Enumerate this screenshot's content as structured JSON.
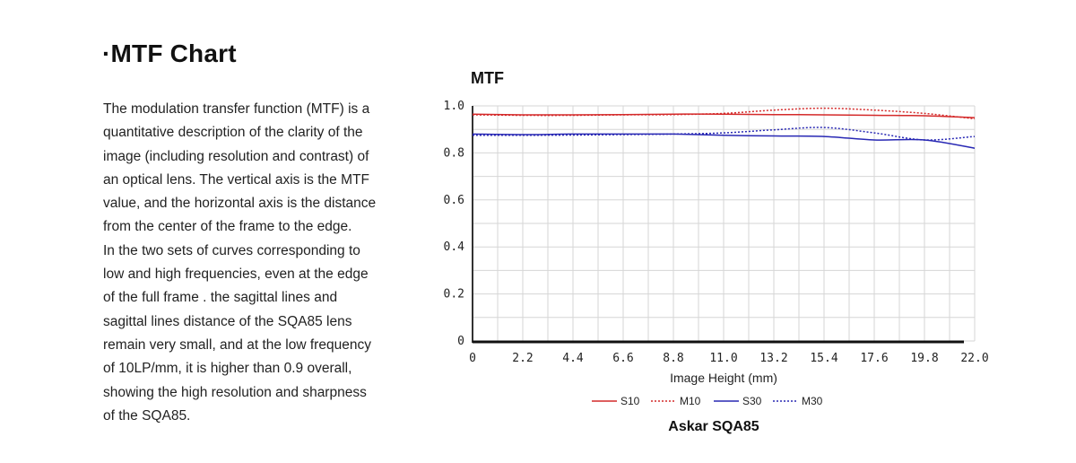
{
  "section": {
    "title": "·MTF Chart",
    "paragraph_lines": [
      "The modulation transfer function (MTF) is a",
      "quantitative description of the clarity of the",
      "image (including resolution and contrast) of",
      "an optical lens. The vertical axis is the MTF",
      "value, and the horizontal axis is the distance",
      "from the center of the frame to the edge.",
      "In the two sets of curves corresponding to",
      "low and high frequencies, even at the edge",
      "of the full frame . the sagittal lines and",
      "sagittal lines distance of the SQA85 lens",
      "remain very small, and at the low frequency",
      "of 10LP/mm, it is higher than 0.9 overall,",
      "showing the high resolution and sharpness",
      "of the SQA85."
    ]
  },
  "chart_data": {
    "type": "line",
    "title": "MTF",
    "xlabel": "Image Height (mm)",
    "ylabel": "",
    "caption": "Askar SQA85",
    "xlim": [
      0,
      22
    ],
    "ylim": [
      0,
      1.0
    ],
    "x_ticks": [
      "0",
      "2.2",
      "4.4",
      "6.6",
      "8.8",
      "11.0",
      "13.2",
      "15.4",
      "17.6",
      "19.8",
      "22.0"
    ],
    "y_ticks": [
      "0",
      "0.2",
      "0.4",
      "0.6",
      "0.8",
      "1.0"
    ],
    "grid": true,
    "legend_position": "bottom",
    "series": [
      {
        "name": "S10",
        "color": "#d42a2a",
        "style": "solid",
        "x": [
          0,
          2.2,
          4.4,
          6.6,
          8.8,
          11.0,
          13.2,
          15.4,
          17.6,
          19.8,
          22.0
        ],
        "y": [
          0.965,
          0.962,
          0.962,
          0.963,
          0.965,
          0.965,
          0.963,
          0.962,
          0.96,
          0.958,
          0.95
        ]
      },
      {
        "name": "M10",
        "color": "#d42a2a",
        "style": "dotted",
        "x": [
          0,
          2.2,
          4.4,
          6.6,
          8.8,
          11.0,
          13.2,
          15.4,
          17.6,
          19.8,
          22.0
        ],
        "y": [
          0.962,
          0.96,
          0.96,
          0.962,
          0.963,
          0.968,
          0.982,
          0.99,
          0.982,
          0.968,
          0.945
        ]
      },
      {
        "name": "S30",
        "color": "#2828b4",
        "style": "solid",
        "x": [
          0,
          2.2,
          4.4,
          6.6,
          8.8,
          11.0,
          13.2,
          15.4,
          17.6,
          19.8,
          22.0
        ],
        "y": [
          0.88,
          0.878,
          0.88,
          0.88,
          0.88,
          0.875,
          0.872,
          0.87,
          0.855,
          0.855,
          0.82
        ]
      },
      {
        "name": "M30",
        "color": "#2828b4",
        "style": "dotted",
        "x": [
          0,
          2.2,
          4.4,
          6.6,
          8.8,
          11.0,
          13.2,
          15.4,
          17.6,
          19.8,
          22.0
        ],
        "y": [
          0.875,
          0.875,
          0.876,
          0.878,
          0.88,
          0.885,
          0.898,
          0.908,
          0.885,
          0.855,
          0.87
        ]
      }
    ]
  }
}
